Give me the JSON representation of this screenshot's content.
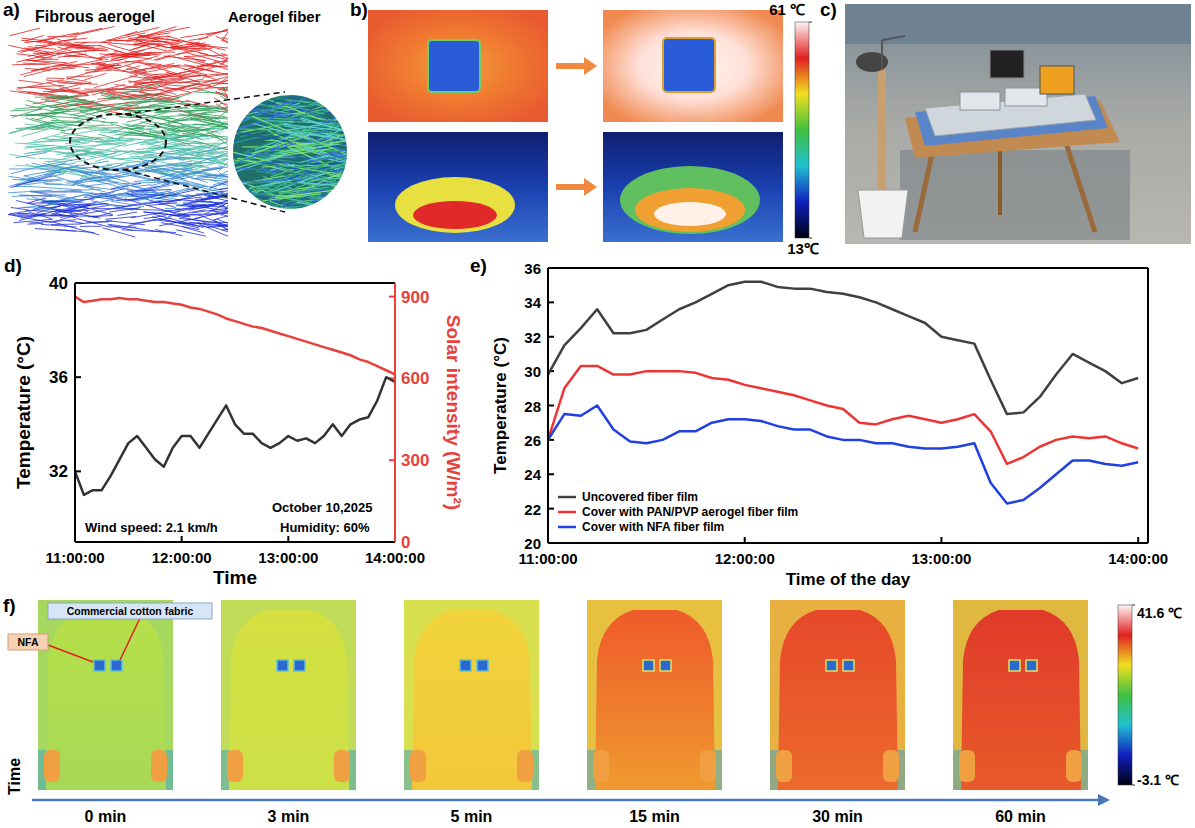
{
  "chart_data": [
    {
      "type": "line",
      "panel_label": "d)",
      "x": [
        11,
        11.083,
        11.167,
        11.25,
        11.333,
        11.417,
        11.5,
        11.583,
        11.667,
        11.75,
        11.833,
        11.917,
        12,
        12.083,
        12.167,
        12.25,
        12.333,
        12.417,
        12.5,
        12.583,
        12.667,
        12.75,
        12.833,
        12.917,
        13,
        13.083,
        13.167,
        13.25,
        13.333,
        13.417,
        13.5,
        13.583,
        13.667,
        13.75,
        13.833,
        13.917,
        14
      ],
      "xlim": [
        11,
        14
      ],
      "xticks": [
        {
          "value": 11,
          "label": "11:00:00"
        },
        {
          "value": 12,
          "label": "12:00:00"
        },
        {
          "value": 13,
          "label": "13:00:00"
        },
        {
          "value": 14,
          "label": "14:00:00"
        }
      ],
      "x_label": "Time",
      "y_label": "Temperature (°C)",
      "y2_label": "Solar intensity (W/m²)",
      "ylim": [
        29,
        40
      ],
      "yticks": [
        32,
        36,
        40
      ],
      "y2lim": [
        0,
        950
      ],
      "y2ticks": [
        0,
        300,
        600,
        900
      ],
      "annotations": [
        "October 10,2025",
        "Wind speed: 2.1 km/h",
        "Humidity: 60%"
      ],
      "series": [
        {
          "color": "#333333",
          "values": [
            32,
            31,
            31.2,
            31.2,
            31.8,
            32.5,
            33.2,
            33.5,
            33,
            32.5,
            32.2,
            33,
            33.5,
            33.5,
            33,
            33.6,
            34.2,
            34.8,
            34,
            33.6,
            33.6,
            33.2,
            33,
            33.2,
            33.5,
            33.3,
            33.4,
            33.2,
            33.5,
            34,
            33.5,
            34,
            34.2,
            34.3,
            35,
            36,
            35.8
          ]
        },
        {
          "color": "#e8403a",
          "axis": "y2",
          "values": [
            900,
            880,
            885,
            890,
            890,
            895,
            890,
            890,
            885,
            880,
            880,
            875,
            870,
            860,
            855,
            845,
            835,
            820,
            810,
            800,
            790,
            785,
            775,
            765,
            755,
            745,
            735,
            725,
            715,
            705,
            695,
            685,
            670,
            660,
            645,
            630,
            615
          ]
        }
      ]
    },
    {
      "type": "line",
      "panel_label": "e)",
      "x": [
        11,
        11.083,
        11.167,
        11.25,
        11.333,
        11.417,
        11.5,
        11.583,
        11.667,
        11.75,
        11.833,
        11.917,
        12,
        12.083,
        12.167,
        12.25,
        12.333,
        12.417,
        12.5,
        12.583,
        12.667,
        12.75,
        12.833,
        12.917,
        13,
        13.083,
        13.167,
        13.25,
        13.333,
        13.417,
        13.5,
        13.583,
        13.667,
        13.75,
        13.833,
        13.917,
        14
      ],
      "xlim": [
        11,
        14.05
      ],
      "xticks": [
        {
          "value": 11,
          "label": "11:00:00"
        },
        {
          "value": 12,
          "label": "12:00:00"
        },
        {
          "value": 13,
          "label": "13:00:00"
        },
        {
          "value": 14,
          "label": "14:00:00"
        }
      ],
      "x_label": "Time of the day",
      "y_label": "Temperature (°C)",
      "ylim": [
        20,
        36
      ],
      "yticks": [
        20,
        22,
        24,
        26,
        28,
        30,
        32,
        34,
        36
      ],
      "legend": "lower left",
      "series": [
        {
          "name": "Uncovered fiber film",
          "color": "#404040",
          "values": [
            29.8,
            31.5,
            32.5,
            33.6,
            32.2,
            32.2,
            32.4,
            33,
            33.6,
            34,
            34.5,
            35,
            35.2,
            35.2,
            34.9,
            34.8,
            34.8,
            34.6,
            34.5,
            34.3,
            34,
            33.6,
            33.2,
            32.8,
            32,
            31.8,
            31.6,
            29.5,
            27.5,
            27.6,
            28.5,
            29.8,
            31,
            30.5,
            30,
            29.3,
            29.6
          ]
        },
        {
          "name": "Cover with PAN/PVP aerogel fiber film",
          "color": "#ee3535",
          "values": [
            26,
            29,
            30.3,
            30.3,
            29.8,
            29.8,
            30,
            30,
            30,
            29.9,
            29.6,
            29.5,
            29.2,
            29,
            28.8,
            28.6,
            28.3,
            28,
            27.8,
            27,
            26.9,
            27.2,
            27.4,
            27.2,
            27,
            27.2,
            27.5,
            26.5,
            24.6,
            25,
            25.6,
            26,
            26.2,
            26.1,
            26.2,
            25.8,
            25.5
          ]
        },
        {
          "name": "Cover with NFA fiber film",
          "color": "#2040e0",
          "values": [
            26,
            27.5,
            27.4,
            28,
            26.6,
            25.9,
            25.8,
            26,
            26.5,
            26.5,
            27,
            27.2,
            27.2,
            27.1,
            26.8,
            26.6,
            26.6,
            26.2,
            26,
            26,
            25.8,
            25.8,
            25.6,
            25.5,
            25.5,
            25.6,
            25.8,
            23.5,
            22.3,
            22.5,
            23.2,
            24,
            24.8,
            24.8,
            24.6,
            24.5,
            24.7
          ]
        }
      ]
    }
  ],
  "panels": {
    "a": {
      "letter": "a)",
      "labels": [
        "Fibrous aerogel",
        "Aerogel fiber"
      ]
    },
    "b": {
      "letter": "b)",
      "colorbar": {
        "range": [
          13,
          61
        ],
        "ticks": [
          {
            "value": 61,
            "label": "61 ℃"
          },
          {
            "value": 13,
            "label": "13℃"
          }
        ]
      }
    },
    "c": {
      "letter": "c)"
    },
    "f": {
      "letter": "f)",
      "annotations": [
        "Commercial cotton fabric",
        "NFA"
      ],
      "axis_label": "Time",
      "times": [
        "0 min",
        "3 min",
        "5 min",
        "15 min",
        "30 min",
        "60 min"
      ],
      "colorbar": {
        "range": [
          -3.1,
          41.6
        ],
        "ticks": [
          {
            "value": 41.6,
            "label": "41.6 ℃"
          },
          {
            "value": -3.1,
            "label": "-3.1 ℃"
          }
        ]
      }
    }
  }
}
